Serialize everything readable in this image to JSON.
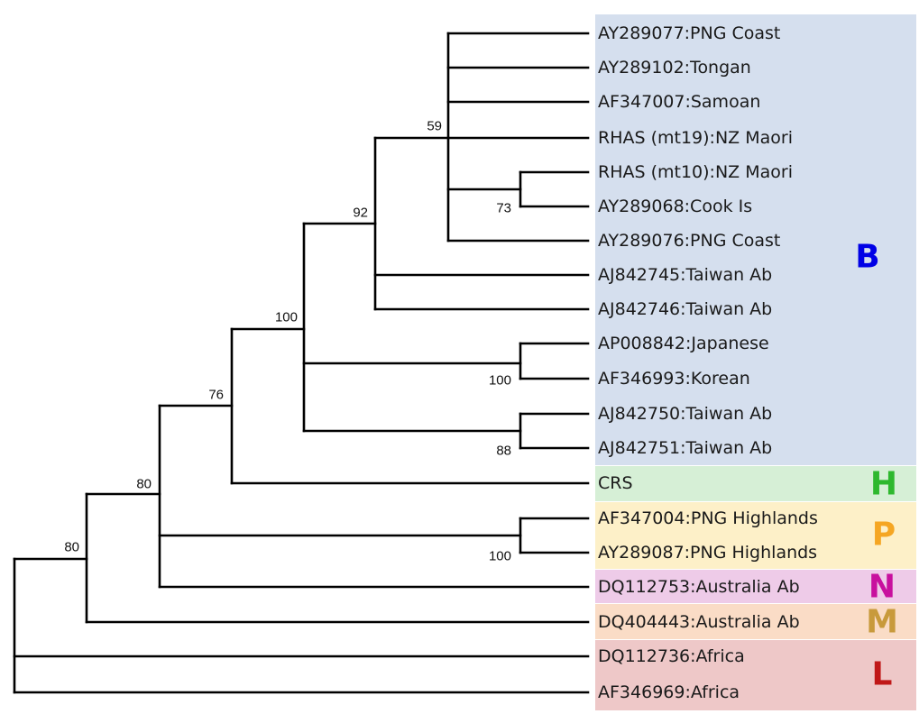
{
  "leaves": [
    "AY289077:PNG Coast",
    "AY289102:Tongan",
    "AF347007:Samoan",
    "RHAS (mt19):NZ Maori",
    "RHAS (mt10):NZ Maori",
    "AY289068:Cook Is",
    "AY289076:PNG Coast",
    "AJ842745:Taiwan Ab",
    "AJ842746:Taiwan Ab",
    "AP008842:Japanese",
    "AF346993:Korean",
    "AJ842750:Taiwan Ab",
    "AJ842751:Taiwan Ab",
    "CRS",
    "AF347004:PNG Highlands",
    "AY289087:PNG Highlands",
    "DQ112753:Australia Ab",
    "DQ404443:Australia Ab",
    "DQ112736:Africa",
    "AF346969:Africa"
  ],
  "support_values": [
    "59",
    "73",
    "92",
    "100",
    "100",
    "88",
    "76",
    "100",
    "80",
    "80"
  ],
  "haplogroups": [
    {
      "letter": "B",
      "color": "#0000e6",
      "background": "#d5dfee"
    },
    {
      "letter": "H",
      "color": "#2eb82e",
      "background": "#d6efd6"
    },
    {
      "letter": "P",
      "color": "#f5a623",
      "background": "#fdf0c8"
    },
    {
      "letter": "N",
      "color": "#c8109e",
      "background": "#eecbe8"
    },
    {
      "letter": "M",
      "color": "#c89a3c",
      "background": "#fadcc6"
    },
    {
      "letter": "L",
      "color": "#c01818",
      "background": "#eec8c8"
    }
  ]
}
